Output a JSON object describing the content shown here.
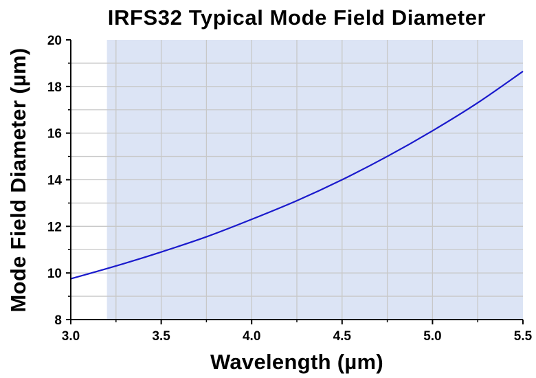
{
  "chart_data": {
    "type": "line",
    "title": "IRFS32 Typical Mode Field Diameter",
    "xlabel": "Wavelength (µm)",
    "ylabel": "Mode Field Diameter (µm)",
    "xlim": [
      3.0,
      5.5
    ],
    "ylim": [
      8,
      20
    ],
    "x_ticks": [
      "3.0",
      "3.5",
      "4.0",
      "4.5",
      "5.0",
      "5.5"
    ],
    "y_ticks": [
      "8",
      "10",
      "12",
      "14",
      "16",
      "18",
      "20"
    ],
    "grid": true,
    "shaded_band": {
      "x_range": [
        3.2,
        5.5
      ],
      "color": "#dce4f5"
    },
    "series": [
      {
        "color": "#1a1acc",
        "x": [
          3.0,
          3.25,
          3.5,
          3.75,
          4.0,
          4.25,
          4.5,
          4.75,
          5.0,
          5.25,
          5.5
        ],
        "y": [
          9.75,
          10.3,
          10.9,
          11.55,
          12.3,
          13.1,
          14.0,
          15.0,
          16.1,
          17.3,
          18.65
        ]
      }
    ],
    "colors": {
      "grid": "#c8c8c8",
      "axis": "#000000",
      "plot_bg": "#ffffff"
    }
  }
}
